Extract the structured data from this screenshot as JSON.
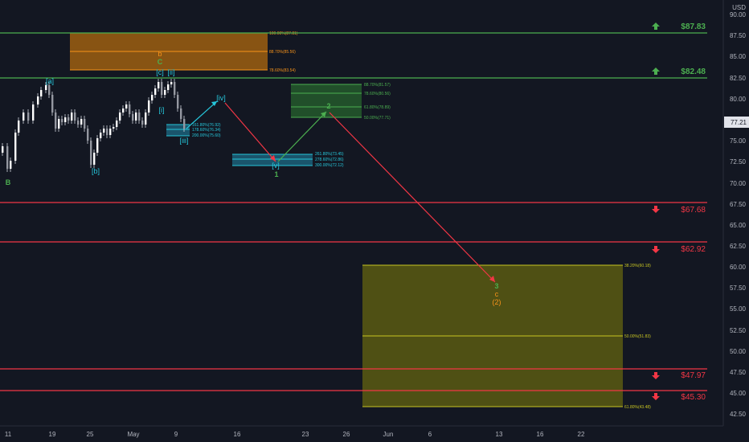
{
  "chart_data": {
    "type": "candlestick",
    "currency": "USD",
    "last_price": "77.21",
    "y_ticks": [
      "90.00",
      "87.50",
      "85.00",
      "82.50",
      "80.00",
      "77.50",
      "75.00",
      "72.50",
      "70.00",
      "67.50",
      "65.00",
      "62.50",
      "60.00",
      "57.50",
      "55.00",
      "52.50",
      "50.00",
      "47.50",
      "45.00",
      "42.50"
    ],
    "x_ticks": [
      "11",
      "19",
      "25",
      "May",
      "9",
      "16",
      "23",
      "26",
      "Jun",
      "6",
      "13",
      "16",
      "22"
    ],
    "price_levels": [
      {
        "label": "$87.83",
        "value": 87.83,
        "direction": "up",
        "color": "#4caf50"
      },
      {
        "label": "$82.48",
        "value": 82.48,
        "direction": "up",
        "color": "#4caf50"
      },
      {
        "label": "$67.68",
        "value": 67.68,
        "direction": "down",
        "color": "#f23645"
      },
      {
        "label": "$62.92",
        "value": 62.92,
        "direction": "down",
        "color": "#f23645"
      },
      {
        "label": "$47.97",
        "value": 47.97,
        "direction": "down",
        "color": "#f23645"
      },
      {
        "label": "$45.30",
        "value": 45.3,
        "direction": "down",
        "color": "#f23645"
      }
    ],
    "fib_zones": [
      {
        "name": "orange-target-zone",
        "color": "#f7931a",
        "labels": [
          "100.00%(87.81)",
          "88.70%(85.56)",
          "78.60%(83.54)"
        ]
      },
      {
        "name": "green-target-zone",
        "color": "#4caf50",
        "labels": [
          "88.70%(81.57)",
          "78.60%(80.56)",
          "61.80%(78.89)",
          "50.00%(77.71)"
        ]
      },
      {
        "name": "blue-target-zone-ii",
        "color": "#26c6da",
        "labels": [
          "161.80%(76.92)",
          "178.60%(76.34)",
          "200.00%(75.60)"
        ]
      },
      {
        "name": "blue-target-zone-v",
        "color": "#26c6da",
        "labels": [
          "261.80%(73.45)",
          "278.60%(72.86)",
          "300.00%(72.12)"
        ]
      },
      {
        "name": "yellow-target-zone",
        "color": "#c7c422",
        "labels": [
          "38.20%(60.18)",
          "50.00%(51.83)",
          "61.80%(43.48)"
        ]
      }
    ],
    "wave_labels": [
      {
        "text": "B",
        "color": "#4caf50"
      },
      {
        "text": "[a]",
        "color": "#26c6da"
      },
      {
        "text": "[b]",
        "color": "#26c6da"
      },
      {
        "text": "b",
        "color": "#f7931a"
      },
      {
        "text": "C",
        "color": "#4caf50"
      },
      {
        "text": "[c]",
        "color": "#26c6da"
      },
      {
        "text": "[ii]",
        "color": "#26c6da"
      },
      {
        "text": "[i]",
        "color": "#26c6da"
      },
      {
        "text": "[iii]",
        "color": "#26c6da"
      },
      {
        "text": "[iv]",
        "color": "#26c6da"
      },
      {
        "text": "[v]",
        "color": "#26c6da"
      },
      {
        "text": "1",
        "color": "#4caf50"
      },
      {
        "text": "2",
        "color": "#4caf50"
      },
      {
        "text": "3",
        "color": "#4caf50"
      },
      {
        "text": "c",
        "color": "#f7931a"
      },
      {
        "text": "(2)",
        "color": "#f7931a"
      }
    ]
  }
}
